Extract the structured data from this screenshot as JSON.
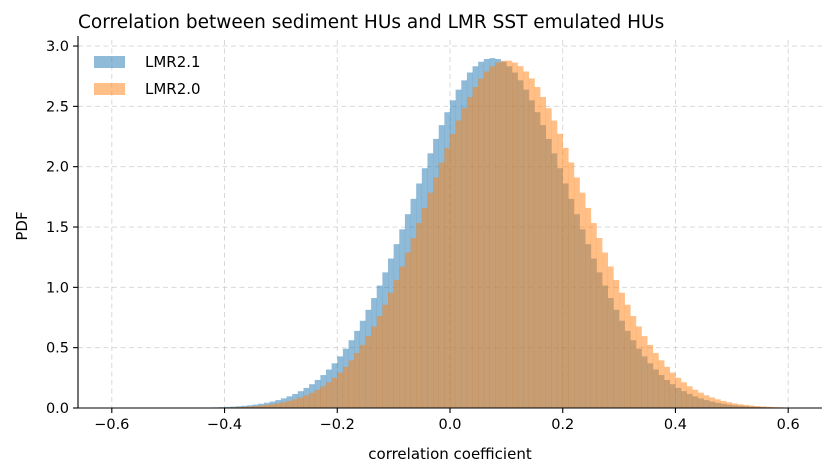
{
  "chart_data": {
    "type": "bar",
    "title": "Correlation between sediment HUs and LMR SST emulated HUs",
    "xlabel": "correlation coefficient",
    "ylabel": "PDF",
    "xlim": [
      -0.66,
      0.66
    ],
    "ylim": [
      0,
      3.05
    ],
    "xticks": [
      -0.6,
      -0.4,
      -0.2,
      0.0,
      0.2,
      0.4,
      0.6
    ],
    "xtick_labels": [
      "−0.6",
      "−0.4",
      "−0.2",
      "0.0",
      "0.2",
      "0.4",
      "0.6"
    ],
    "yticks": [
      0.0,
      0.5,
      1.0,
      1.5,
      2.0,
      2.5,
      3.0
    ],
    "ytick_labels": [
      "0.0",
      "0.5",
      "1.0",
      "1.5",
      "2.0",
      "2.5",
      "3.0"
    ],
    "grid": true,
    "legend_position": "top-left",
    "series": [
      {
        "name": "LMR2.1",
        "color": "#1f77b4",
        "opacity": 0.5,
        "distribution": "normal",
        "mean": 0.075,
        "std": 0.138,
        "bin_range": [
          -0.6,
          0.6
        ],
        "peak": 2.9
      },
      {
        "name": "LMR2.0",
        "color": "#ff7f0e",
        "opacity": 0.5,
        "distribution": "normal",
        "mean": 0.1,
        "std": 0.138,
        "bin_range": [
          -0.6,
          0.6
        ],
        "peak": 2.88
      }
    ],
    "bins": 120
  }
}
